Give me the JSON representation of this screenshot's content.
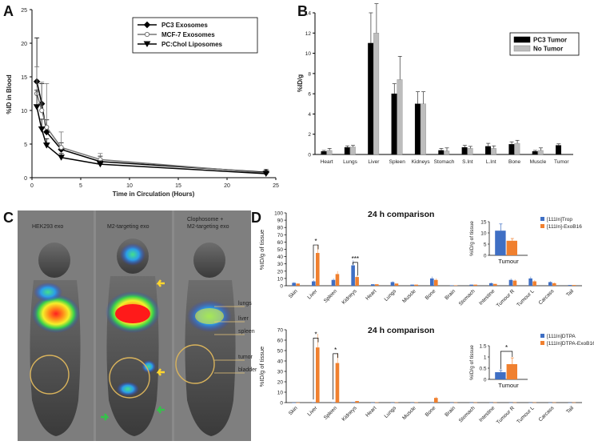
{
  "panel_labels": [
    "A",
    "B",
    "C",
    "D"
  ],
  "colors": {
    "pc3_tumor": "#000000",
    "no_tumor": "#bdbdbd",
    "blue_bar": "#3f6fc4",
    "orange_bar": "#f0802f",
    "circle_line": "#d9b35c",
    "arrow_yellow": "#ffd62e",
    "arrow_green": "#35c24a"
  },
  "chart_data": [
    {
      "id": "A",
      "type": "line",
      "title": "",
      "xlabel": "Time in Circulation (Hours)",
      "ylabel": "%ID in Blood",
      "xlim": [
        0,
        25
      ],
      "ylim": [
        0,
        25
      ],
      "xticks": [
        0,
        5,
        10,
        15,
        20,
        25
      ],
      "yticks": [
        0,
        5,
        10,
        15,
        20,
        25
      ],
      "legend": [
        "PC3 Exosomes",
        "MCF-7 Exosomes",
        "PC:Chol Liposomes"
      ],
      "series": [
        {
          "name": "PC3 Exosomes",
          "marker": "diamond",
          "x": [
            0.5,
            1,
            1.5,
            3,
            7,
            24
          ],
          "y": [
            14.3,
            11,
            6.8,
            4.2,
            2.4,
            0.8
          ],
          "err": [
            6.5,
            3,
            1.8,
            1.0,
            0.8,
            0.4
          ]
        },
        {
          "name": "MCF-7 Exosomes",
          "marker": "circle",
          "x": [
            0.5,
            1,
            1.5,
            3,
            7,
            24
          ],
          "y": [
            12.5,
            10,
            7.5,
            4.5,
            2.7,
            0.7
          ],
          "err": [
            4,
            4.2,
            6.5,
            2.3,
            0.9,
            0.3
          ]
        },
        {
          "name": "PC:Chol Liposomes",
          "marker": "triangle",
          "x": [
            0.5,
            1,
            1.5,
            3,
            7,
            24
          ],
          "y": [
            10.5,
            7.2,
            4.8,
            3.0,
            2.0,
            0.6
          ],
          "err": [
            2.5,
            1.5,
            1.0,
            0.6,
            0.5,
            0.3
          ]
        }
      ]
    },
    {
      "id": "B",
      "type": "bar",
      "ylabel": "%ID/g",
      "ylim": [
        0,
        14
      ],
      "yticks": [
        0,
        2,
        4,
        6,
        8,
        10,
        12,
        14
      ],
      "categories": [
        "Heart",
        "Lungs",
        "Liver",
        "Spleen",
        "Kidneys",
        "Stomach",
        "S.Int",
        "L.Int",
        "Bone",
        "Muscle",
        "Tumor"
      ],
      "series": [
        {
          "name": "PC3 Tumor",
          "values": [
            0.3,
            0.7,
            11.0,
            6.0,
            5.0,
            0.4,
            0.7,
            0.8,
            1.0,
            0.3,
            0.9
          ],
          "err": [
            0.1,
            0.15,
            3.0,
            1.0,
            1.2,
            0.2,
            0.2,
            0.3,
            0.25,
            0.1,
            0.15
          ]
        },
        {
          "name": "No Tumor",
          "values": [
            0.4,
            0.75,
            12.0,
            7.4,
            5.0,
            0.35,
            0.6,
            0.6,
            1.1,
            0.4,
            null
          ],
          "err": [
            0.2,
            0.15,
            2.9,
            2.3,
            1.2,
            0.3,
            0.2,
            0.25,
            0.3,
            0.25,
            null
          ]
        }
      ]
    },
    {
      "id": "D-top",
      "type": "bar",
      "title": "24 h comparison",
      "ylabel": "%ID/g of tissue",
      "ylim": [
        0,
        100
      ],
      "yticks": [
        0,
        10,
        20,
        30,
        40,
        50,
        60,
        70,
        80,
        90,
        100
      ],
      "categories": [
        "Skin",
        "Liver",
        "Spleen",
        "Kidneys",
        "Heart",
        "Lungs",
        "Muscle",
        "Bone",
        "Brain",
        "Stomach",
        "Intestine",
        "Tumour R",
        "Tumour L",
        "Carcass",
        "Tail"
      ],
      "series": [
        {
          "name": "[111In]Trop",
          "values": [
            4,
            6,
            8,
            28,
            2,
            5,
            1.5,
            10,
            0.5,
            1.5,
            3.5,
            8,
            10,
            5,
            1
          ]
        },
        {
          "name": "[111In]-ExoB16",
          "values": [
            3,
            45,
            16,
            12,
            2,
            3,
            1.5,
            8,
            0.5,
            1.5,
            2.5,
            7,
            6,
            3.5,
            1
          ]
        }
      ],
      "significance": [
        "*",
        "***"
      ],
      "inset": {
        "xlabel": "Tumour",
        "ylabel": "%ID/g of tissue",
        "ylim": [
          0,
          15
        ],
        "yticks": [
          0,
          5,
          10,
          15
        ],
        "values": [
          11,
          6.5
        ],
        "err": [
          3,
          1
        ]
      }
    },
    {
      "id": "D-bottom",
      "type": "bar",
      "title": "24 h comparison",
      "ylabel": "%ID/g of tissue",
      "ylim": [
        0,
        70
      ],
      "yticks": [
        0,
        10,
        20,
        30,
        40,
        50,
        60,
        70
      ],
      "categories": [
        "Skin",
        "Liver",
        "Spleen",
        "Kidneys",
        "Heart",
        "Lungs",
        "Muscle",
        "Bone",
        "Brain",
        "Stomach",
        "Intestine",
        "Tumour R",
        "Tumour L",
        "Carcass",
        "Tail"
      ],
      "series": [
        {
          "name": "[111In]DTPA",
          "values": [
            0,
            0.3,
            0.3,
            0.5,
            0,
            0,
            0,
            0,
            0,
            0,
            0,
            0,
            0,
            0,
            0
          ]
        },
        {
          "name": "[111In]DTPA-ExoB16",
          "values": [
            0,
            53,
            38,
            1.5,
            0.3,
            0.3,
            0.3,
            4.5,
            0.2,
            0.2,
            0.2,
            0.2,
            0.2,
            0.2,
            0.2
          ]
        }
      ],
      "significance": [
        "*",
        "*"
      ],
      "inset": {
        "xlabel": "Tumour",
        "ylabel": "%ID/g of tissue",
        "ylim": [
          0,
          1.5
        ],
        "yticks": [
          0,
          0.5,
          1,
          1.5
        ],
        "values": [
          0.32,
          0.68
        ],
        "err": [
          0.08,
          0.28
        ],
        "significance": "*"
      }
    }
  ],
  "imaging": {
    "column_titles": [
      "HEK293 exo",
      "M2-targeting exo",
      "Clophosome +\nM2-targeting exo"
    ],
    "organ_labels": [
      "lungs",
      "liver",
      "spleen",
      "tumor",
      "bladder"
    ]
  }
}
